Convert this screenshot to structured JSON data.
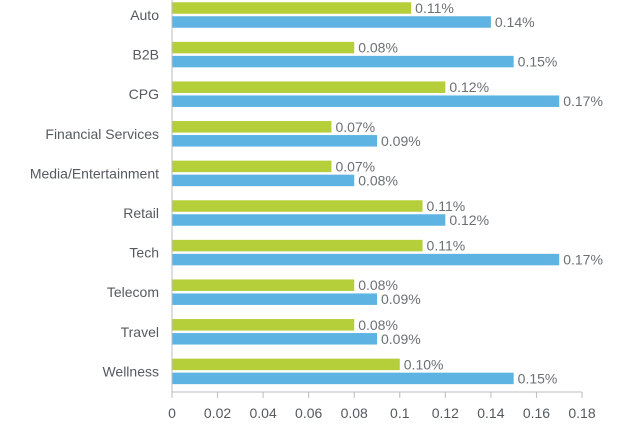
{
  "chart_data": {
    "type": "bar",
    "orientation": "horizontal",
    "categories": [
      "Auto",
      "B2B",
      "CPG",
      "Financial Services",
      "Media/Entertainment",
      "Retail",
      "Tech",
      "Telecom",
      "Travel",
      "Wellness"
    ],
    "series": [
      {
        "color": "#b5cf3a",
        "values": [
          0.105,
          0.08,
          0.12,
          0.07,
          0.07,
          0.11,
          0.11,
          0.08,
          0.08,
          0.1
        ],
        "labels": [
          "0.11%",
          "0.08%",
          "0.12%",
          "0.07%",
          "0.07%",
          "0.11%",
          "0.11%",
          "0.08%",
          "0.08%",
          "0.10%"
        ]
      },
      {
        "color": "#5db4e2",
        "values": [
          0.14,
          0.15,
          0.17,
          0.09,
          0.08,
          0.12,
          0.17,
          0.09,
          0.09,
          0.15
        ],
        "labels": [
          "0.14%",
          "0.15%",
          "0.17%",
          "0.09%",
          "0.08%",
          "0.12%",
          "0.17%",
          "0.09%",
          "0.09%",
          "0.15%"
        ]
      }
    ],
    "xticks": [
      "0",
      "0.02",
      "0.04",
      "0.06",
      "0.08",
      "0.1",
      "0.12",
      "0.14",
      "0.16",
      "0.18"
    ],
    "xlim": [
      0,
      0.18
    ],
    "grid": false,
    "legend": "none"
  }
}
